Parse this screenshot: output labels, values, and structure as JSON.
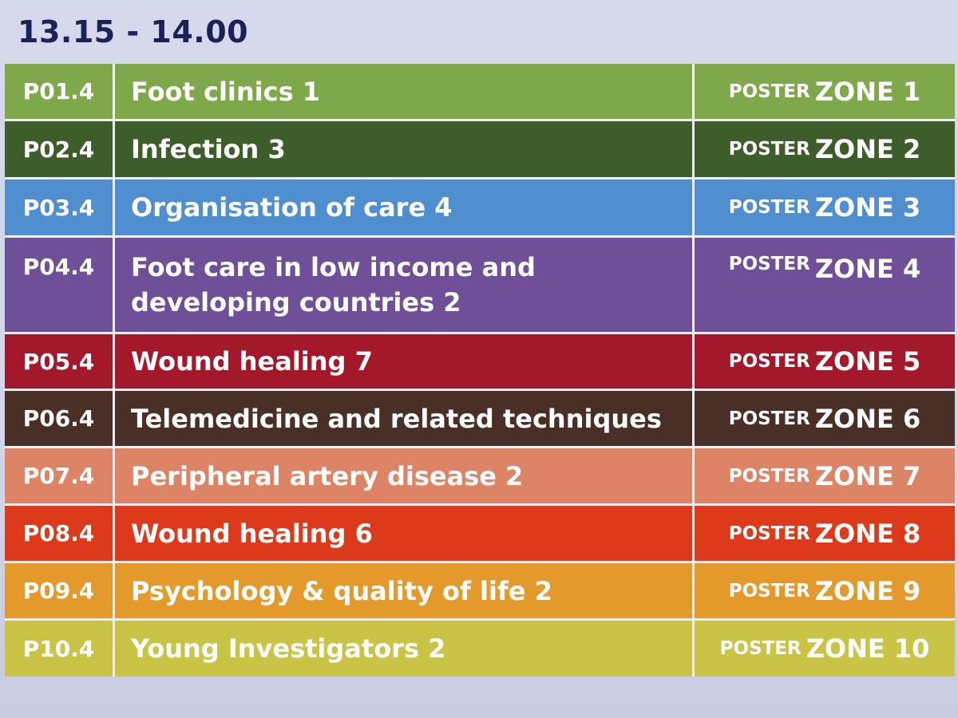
{
  "time_slot": "13.15 - 14.00",
  "rows": [
    {
      "code": "P01.4",
      "title": "Foot clinics 1",
      "poster": "POSTER",
      "zone": "ZONE 1",
      "color": "#7fa84a"
    },
    {
      "code": "P02.4",
      "title": "Infection 3",
      "poster": "POSTER",
      "zone": "ZONE 2",
      "color": "#3d5d2a"
    },
    {
      "code": "P03.4",
      "title": "Organisation of care 4",
      "poster": "POSTER",
      "zone": "ZONE 3",
      "color": "#4f8fd0"
    },
    {
      "code": "P04.4",
      "title": "Foot care in low income and developing countries 2",
      "poster": "POSTER",
      "zone": "ZONE 4",
      "color": "#6e4f98"
    },
    {
      "code": "P05.4",
      "title": "Wound healing 7",
      "poster": "POSTER",
      "zone": "ZONE 5",
      "color": "#a3182a"
    },
    {
      "code": "P06.4",
      "title": "Telemedicine and related techniques",
      "poster": "POSTER",
      "zone": "ZONE 6",
      "color": "#4a2f26"
    },
    {
      "code": "P07.4",
      "title": "Peripheral artery disease 2",
      "poster": "POSTER",
      "zone": "ZONE 7",
      "color": "#dd8466"
    },
    {
      "code": "P08.4",
      "title": "Wound healing 6",
      "poster": "POSTER",
      "zone": "ZONE 8",
      "color": "#dd3a1c"
    },
    {
      "code": "P09.4",
      "title": "Psychology & quality of life 2",
      "poster": "POSTER",
      "zone": "ZONE 9",
      "color": "#e39a2a"
    },
    {
      "code": "P10.4",
      "title": "Young Investigators 2",
      "poster": "POSTER",
      "zone": "ZONE 10",
      "color": "#c9c346"
    }
  ]
}
